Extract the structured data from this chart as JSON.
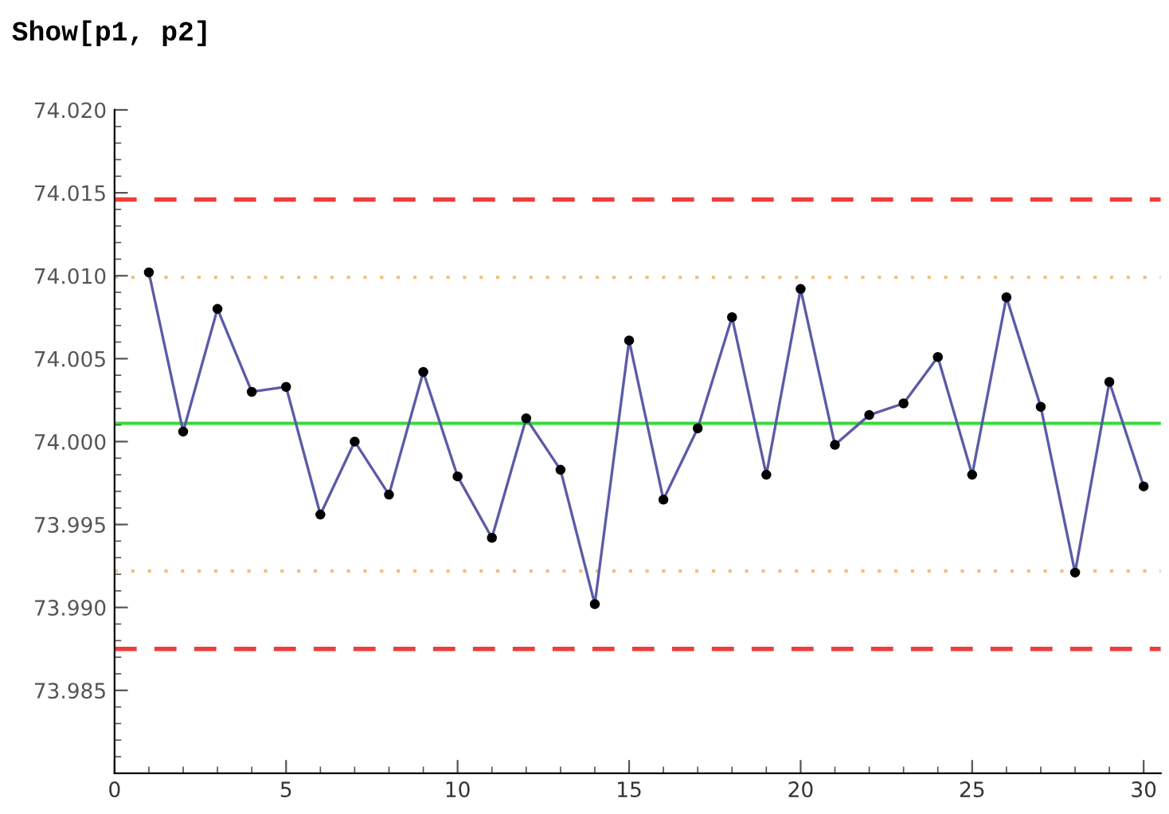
{
  "chart_data": {
    "type": "line",
    "title": "Show[p1, p2]",
    "x": [
      1,
      2,
      3,
      4,
      5,
      6,
      7,
      8,
      9,
      10,
      11,
      12,
      13,
      14,
      15,
      16,
      17,
      18,
      19,
      20,
      21,
      22,
      23,
      24,
      25,
      26,
      27,
      28,
      29,
      30
    ],
    "series": [
      {
        "color": "#5b5ba8",
        "values": [
          74.0102,
          74.0006,
          74.008,
          74.003,
          74.0033,
          73.9956,
          74.0,
          73.9968,
          74.0042,
          73.9979,
          73.9942,
          74.0014,
          73.9983,
          73.9902,
          74.0061,
          73.9965,
          74.0008,
          74.0075,
          73.998,
          74.0092,
          73.9998,
          74.0016,
          74.0023,
          74.0051,
          73.998,
          74.0087,
          74.0021,
          73.9921,
          74.0036,
          73.9973
        ]
      }
    ],
    "marker": "circle",
    "line_style": "solid",
    "grid": false,
    "legend": false,
    "xlim": [
      0,
      30.5
    ],
    "ylim": [
      73.98,
      74.02
    ],
    "xticks": [
      0,
      5,
      10,
      15,
      20,
      25,
      30,
      {
        "value": 1,
        "label": null
      },
      {
        "value": 2,
        "label": null
      },
      {
        "value": 3,
        "label": null
      },
      {
        "value": 4,
        "label": null
      },
      {
        "value": 6,
        "label": null
      },
      {
        "value": 7,
        "label": null
      },
      {
        "value": 8,
        "label": null
      },
      {
        "value": 9,
        "label": null
      },
      {
        "value": 11,
        "label": null
      },
      {
        "value": 12,
        "label": null
      },
      {
        "value": 13,
        "label": null
      },
      {
        "value": 14,
        "label": null
      },
      {
        "value": 16,
        "label": null
      },
      {
        "value": 17,
        "label": null
      },
      {
        "value": 18,
        "label": null
      },
      {
        "value": 19,
        "label": null
      },
      {
        "value": 21,
        "label": null
      },
      {
        "value": 22,
        "label": null
      },
      {
        "value": 23,
        "label": null
      },
      {
        "value": 24,
        "label": null
      },
      {
        "value": 26,
        "label": null
      },
      {
        "value": 27,
        "label": null
      },
      {
        "value": 28,
        "label": null
      },
      {
        "value": 29,
        "label": null
      }
    ],
    "yticks": [
      {
        "value": 73.985,
        "label": "73.985"
      },
      {
        "value": 73.99,
        "label": "73.990"
      },
      {
        "value": 73.995,
        "label": "73.995"
      },
      {
        "value": 74.0,
        "label": "74.000"
      },
      {
        "value": 74.005,
        "label": "74.005"
      },
      {
        "value": 74.01,
        "label": "74.010"
      },
      {
        "value": 74.015,
        "label": "74.015"
      },
      {
        "value": 74.02,
        "label": "74.020"
      },
      {
        "value": 73.981,
        "label": null
      },
      {
        "value": 73.982,
        "label": null
      },
      {
        "value": 73.983,
        "label": null
      },
      {
        "value": 73.984,
        "label": null
      },
      {
        "value": 73.986,
        "label": null
      },
      {
        "value": 73.987,
        "label": null
      },
      {
        "value": 73.988,
        "label": null
      },
      {
        "value": 73.989,
        "label": null
      },
      {
        "value": 73.991,
        "label": null
      },
      {
        "value": 73.992,
        "label": null
      },
      {
        "value": 73.993,
        "label": null
      },
      {
        "value": 73.994,
        "label": null
      },
      {
        "value": 73.996,
        "label": null
      },
      {
        "value": 73.997,
        "label": null
      },
      {
        "value": 73.998,
        "label": null
      },
      {
        "value": 73.999,
        "label": null
      },
      {
        "value": 74.001,
        "label": null
      },
      {
        "value": 74.002,
        "label": null
      },
      {
        "value": 74.003,
        "label": null
      },
      {
        "value": 74.004,
        "label": null
      },
      {
        "value": 74.006,
        "label": null
      },
      {
        "value": 74.007,
        "label": null
      },
      {
        "value": 74.008,
        "label": null
      },
      {
        "value": 74.009,
        "label": null
      },
      {
        "value": 74.011,
        "label": null
      },
      {
        "value": 74.012,
        "label": null
      },
      {
        "value": 74.013,
        "label": null
      },
      {
        "value": 74.014,
        "label": null
      },
      {
        "value": 74.016,
        "label": null
      },
      {
        "value": 74.017,
        "label": null
      },
      {
        "value": 74.018,
        "label": null
      },
      {
        "value": 74.019,
        "label": null
      }
    ],
    "ref_lines": [
      {
        "axis": "y",
        "value": 74.0146,
        "color": "#f03c3c",
        "line_style": "dashed"
      },
      {
        "axis": "y",
        "value": 74.0099,
        "color": "#f0c080",
        "line_style": "dotted"
      },
      {
        "axis": "y",
        "value": 74.0011,
        "color": "#33dd33",
        "line_style": "solid"
      },
      {
        "axis": "y",
        "value": 73.9922,
        "color": "#f0c080",
        "line_style": "dotted"
      },
      {
        "axis": "y",
        "value": 73.9875,
        "color": "#f03c3c",
        "line_style": "dashed"
      }
    ]
  }
}
